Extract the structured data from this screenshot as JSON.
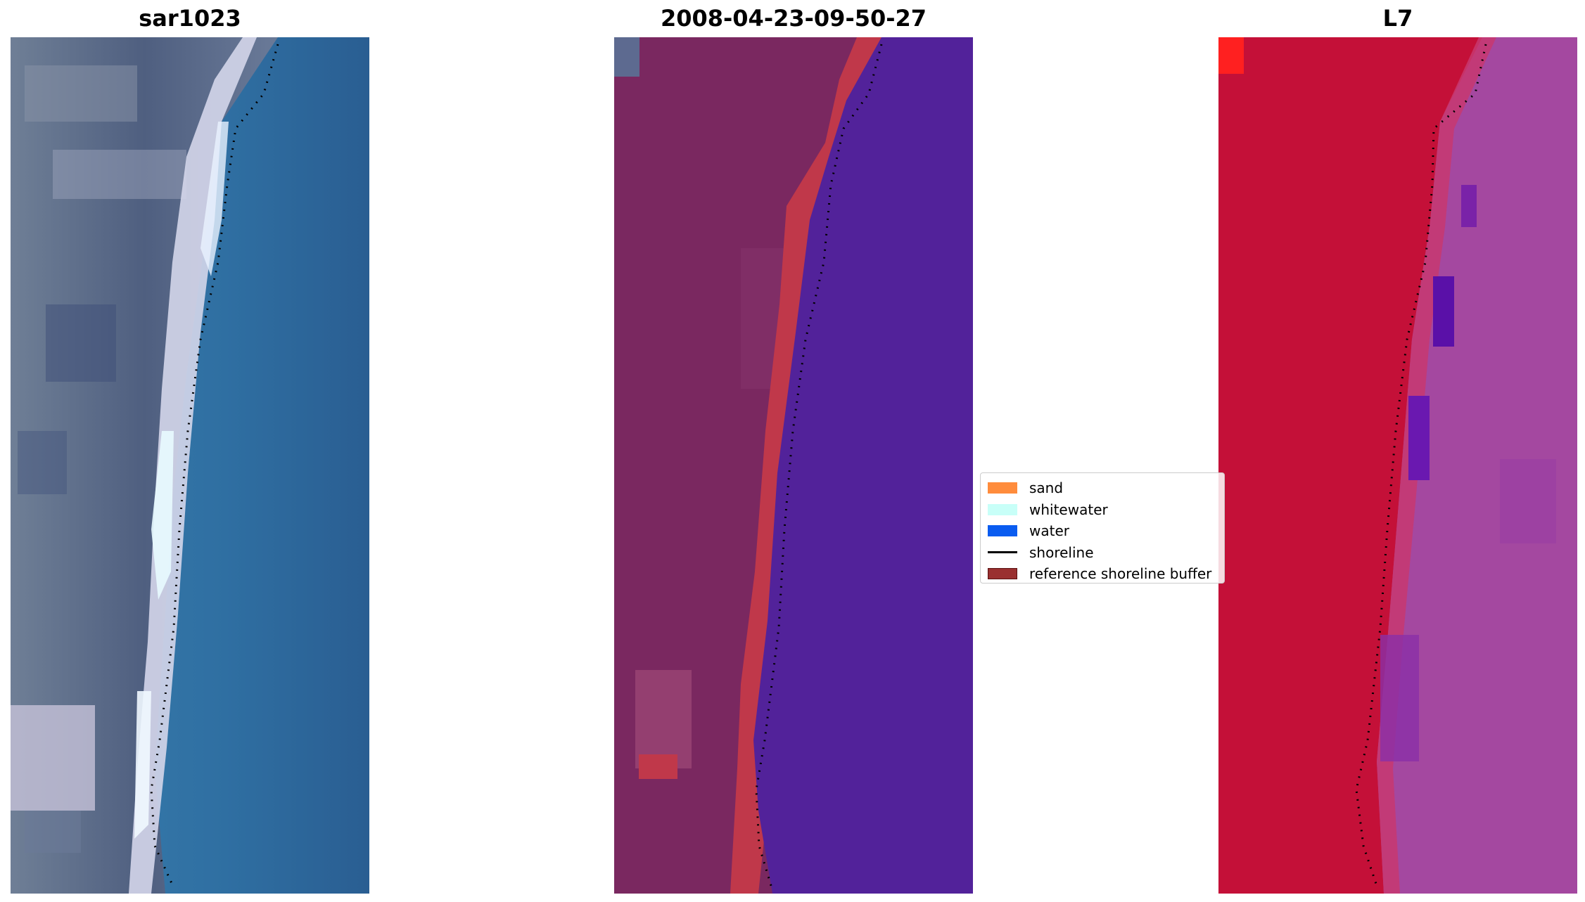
{
  "panels": [
    {
      "title": "sar1023",
      "kind": "rgb"
    },
    {
      "title": "2008-04-23-09-50-27",
      "kind": "classified"
    },
    {
      "title": "L7",
      "kind": "false-colour"
    }
  ],
  "legend": {
    "items": [
      {
        "label": "sand",
        "color": "#ff8c3c",
        "type": "patch"
      },
      {
        "label": "whitewater",
        "color": "#c8fff8",
        "type": "patch"
      },
      {
        "label": "water",
        "color": "#0a5cf0",
        "type": "patch"
      },
      {
        "label": "shoreline",
        "color": "#000000",
        "type": "line"
      },
      {
        "label": "reference shoreline buffer",
        "color": "#9a3030",
        "type": "patch"
      }
    ]
  },
  "colors": {
    "rgb_land": "#5a6a86",
    "rgb_beach": "#d8dcec",
    "rgb_water": "#2f6ea0",
    "class_land": "#7a2860",
    "class_buffer": "#c0384a",
    "class_water": "#52229a",
    "fc_land": "#c41038",
    "fc_water": "#a448a0"
  }
}
